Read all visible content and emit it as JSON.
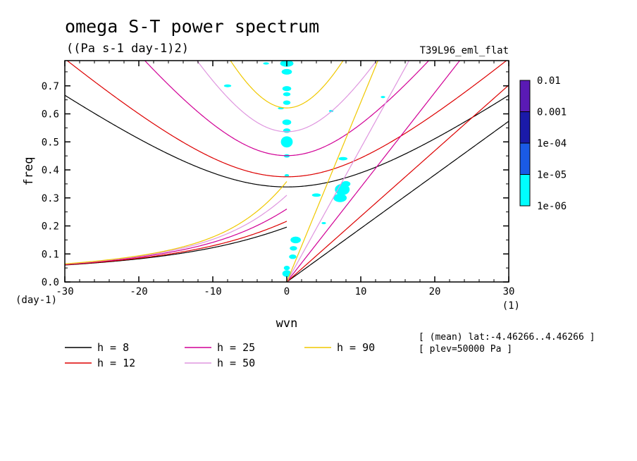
{
  "chart_data": {
    "type": "line",
    "title": "omega S-T power spectrum",
    "units": "((Pa s-1 day-1)2)",
    "run_label": "T39L96_eml_flat",
    "xlabel": "wvn",
    "xunit": "(1)",
    "ylabel": "freq",
    "yunit": "(day-1)",
    "xlim": [
      -30,
      30
    ],
    "ylim": [
      0,
      0.79
    ],
    "xticks": [
      "-30",
      "-20",
      "-10",
      "0",
      "10",
      "20",
      "30"
    ],
    "yticks": [
      "0.0",
      "0.1",
      "0.2",
      "0.3",
      "0.4",
      "0.5",
      "0.6",
      "0.7"
    ],
    "info": [
      "[ (mean) lat:-4.46266..4.46266 ]",
      "[ plev=50000 Pa ]"
    ],
    "colorbar": {
      "labels": [
        "0.01",
        "0.001",
        "1e-04",
        "1e-05",
        "1e-06"
      ],
      "colors": [
        "#5a1ab4",
        "#1a1aa8",
        "#1a5ae6",
        "#00ffff"
      ]
    },
    "series": [
      {
        "name": "h =  8",
        "h": 8,
        "color": "#000000"
      },
      {
        "name": "h = 12",
        "h": 12,
        "color": "#dd0000"
      },
      {
        "name": "h = 25",
        "h": 25,
        "color": "#d10096"
      },
      {
        "name": "h = 50",
        "h": 50,
        "color": "#df96df"
      },
      {
        "name": "h = 90",
        "h": 90,
        "color": "#f0c800"
      }
    ],
    "spectral_blobs": [
      {
        "x": 0,
        "y": 0.78,
        "rx": 0.9,
        "ry": 0.012
      },
      {
        "x": 0,
        "y": 0.75,
        "rx": 0.7,
        "ry": 0.01
      },
      {
        "x": 0,
        "y": 0.69,
        "rx": 0.6,
        "ry": 0.009
      },
      {
        "x": 0,
        "y": 0.67,
        "rx": 0.5,
        "ry": 0.007
      },
      {
        "x": 0,
        "y": 0.64,
        "rx": 0.5,
        "ry": 0.008
      },
      {
        "x": 0,
        "y": 0.57,
        "rx": 0.6,
        "ry": 0.01
      },
      {
        "x": 0,
        "y": 0.54,
        "rx": 0.5,
        "ry": 0.008
      },
      {
        "x": 0,
        "y": 0.5,
        "rx": 0.8,
        "ry": 0.02
      },
      {
        "x": 0,
        "y": 0.45,
        "rx": 0.4,
        "ry": 0.006
      },
      {
        "x": 0,
        "y": 0.38,
        "rx": 0.3,
        "ry": 0.005
      },
      {
        "x": -0.8,
        "y": 0.62,
        "rx": 0.4,
        "ry": 0.004
      },
      {
        "x": 7.5,
        "y": 0.33,
        "rx": 1.0,
        "ry": 0.02
      },
      {
        "x": 7.2,
        "y": 0.3,
        "rx": 0.9,
        "ry": 0.015
      },
      {
        "x": 8,
        "y": 0.35,
        "rx": 0.6,
        "ry": 0.01
      },
      {
        "x": 7.6,
        "y": 0.44,
        "rx": 0.6,
        "ry": 0.006
      },
      {
        "x": 4,
        "y": 0.31,
        "rx": 0.6,
        "ry": 0.006
      },
      {
        "x": 1.2,
        "y": 0.15,
        "rx": 0.7,
        "ry": 0.012
      },
      {
        "x": 0.9,
        "y": 0.12,
        "rx": 0.5,
        "ry": 0.008
      },
      {
        "x": 0.8,
        "y": 0.09,
        "rx": 0.5,
        "ry": 0.008
      },
      {
        "x": 0,
        "y": 0.03,
        "rx": 0.6,
        "ry": 0.012
      },
      {
        "x": 0,
        "y": 0.05,
        "rx": 0.4,
        "ry": 0.008
      },
      {
        "x": -8.0,
        "y": 0.7,
        "rx": 0.5,
        "ry": 0.005
      },
      {
        "x": -2.8,
        "y": 0.78,
        "rx": 0.4,
        "ry": 0.004
      },
      {
        "x": 6.0,
        "y": 0.61,
        "rx": 0.3,
        "ry": 0.004
      },
      {
        "x": 13.0,
        "y": 0.66,
        "rx": 0.3,
        "ry": 0.004
      },
      {
        "x": 5.0,
        "y": 0.21,
        "rx": 0.3,
        "ry": 0.004
      }
    ]
  }
}
